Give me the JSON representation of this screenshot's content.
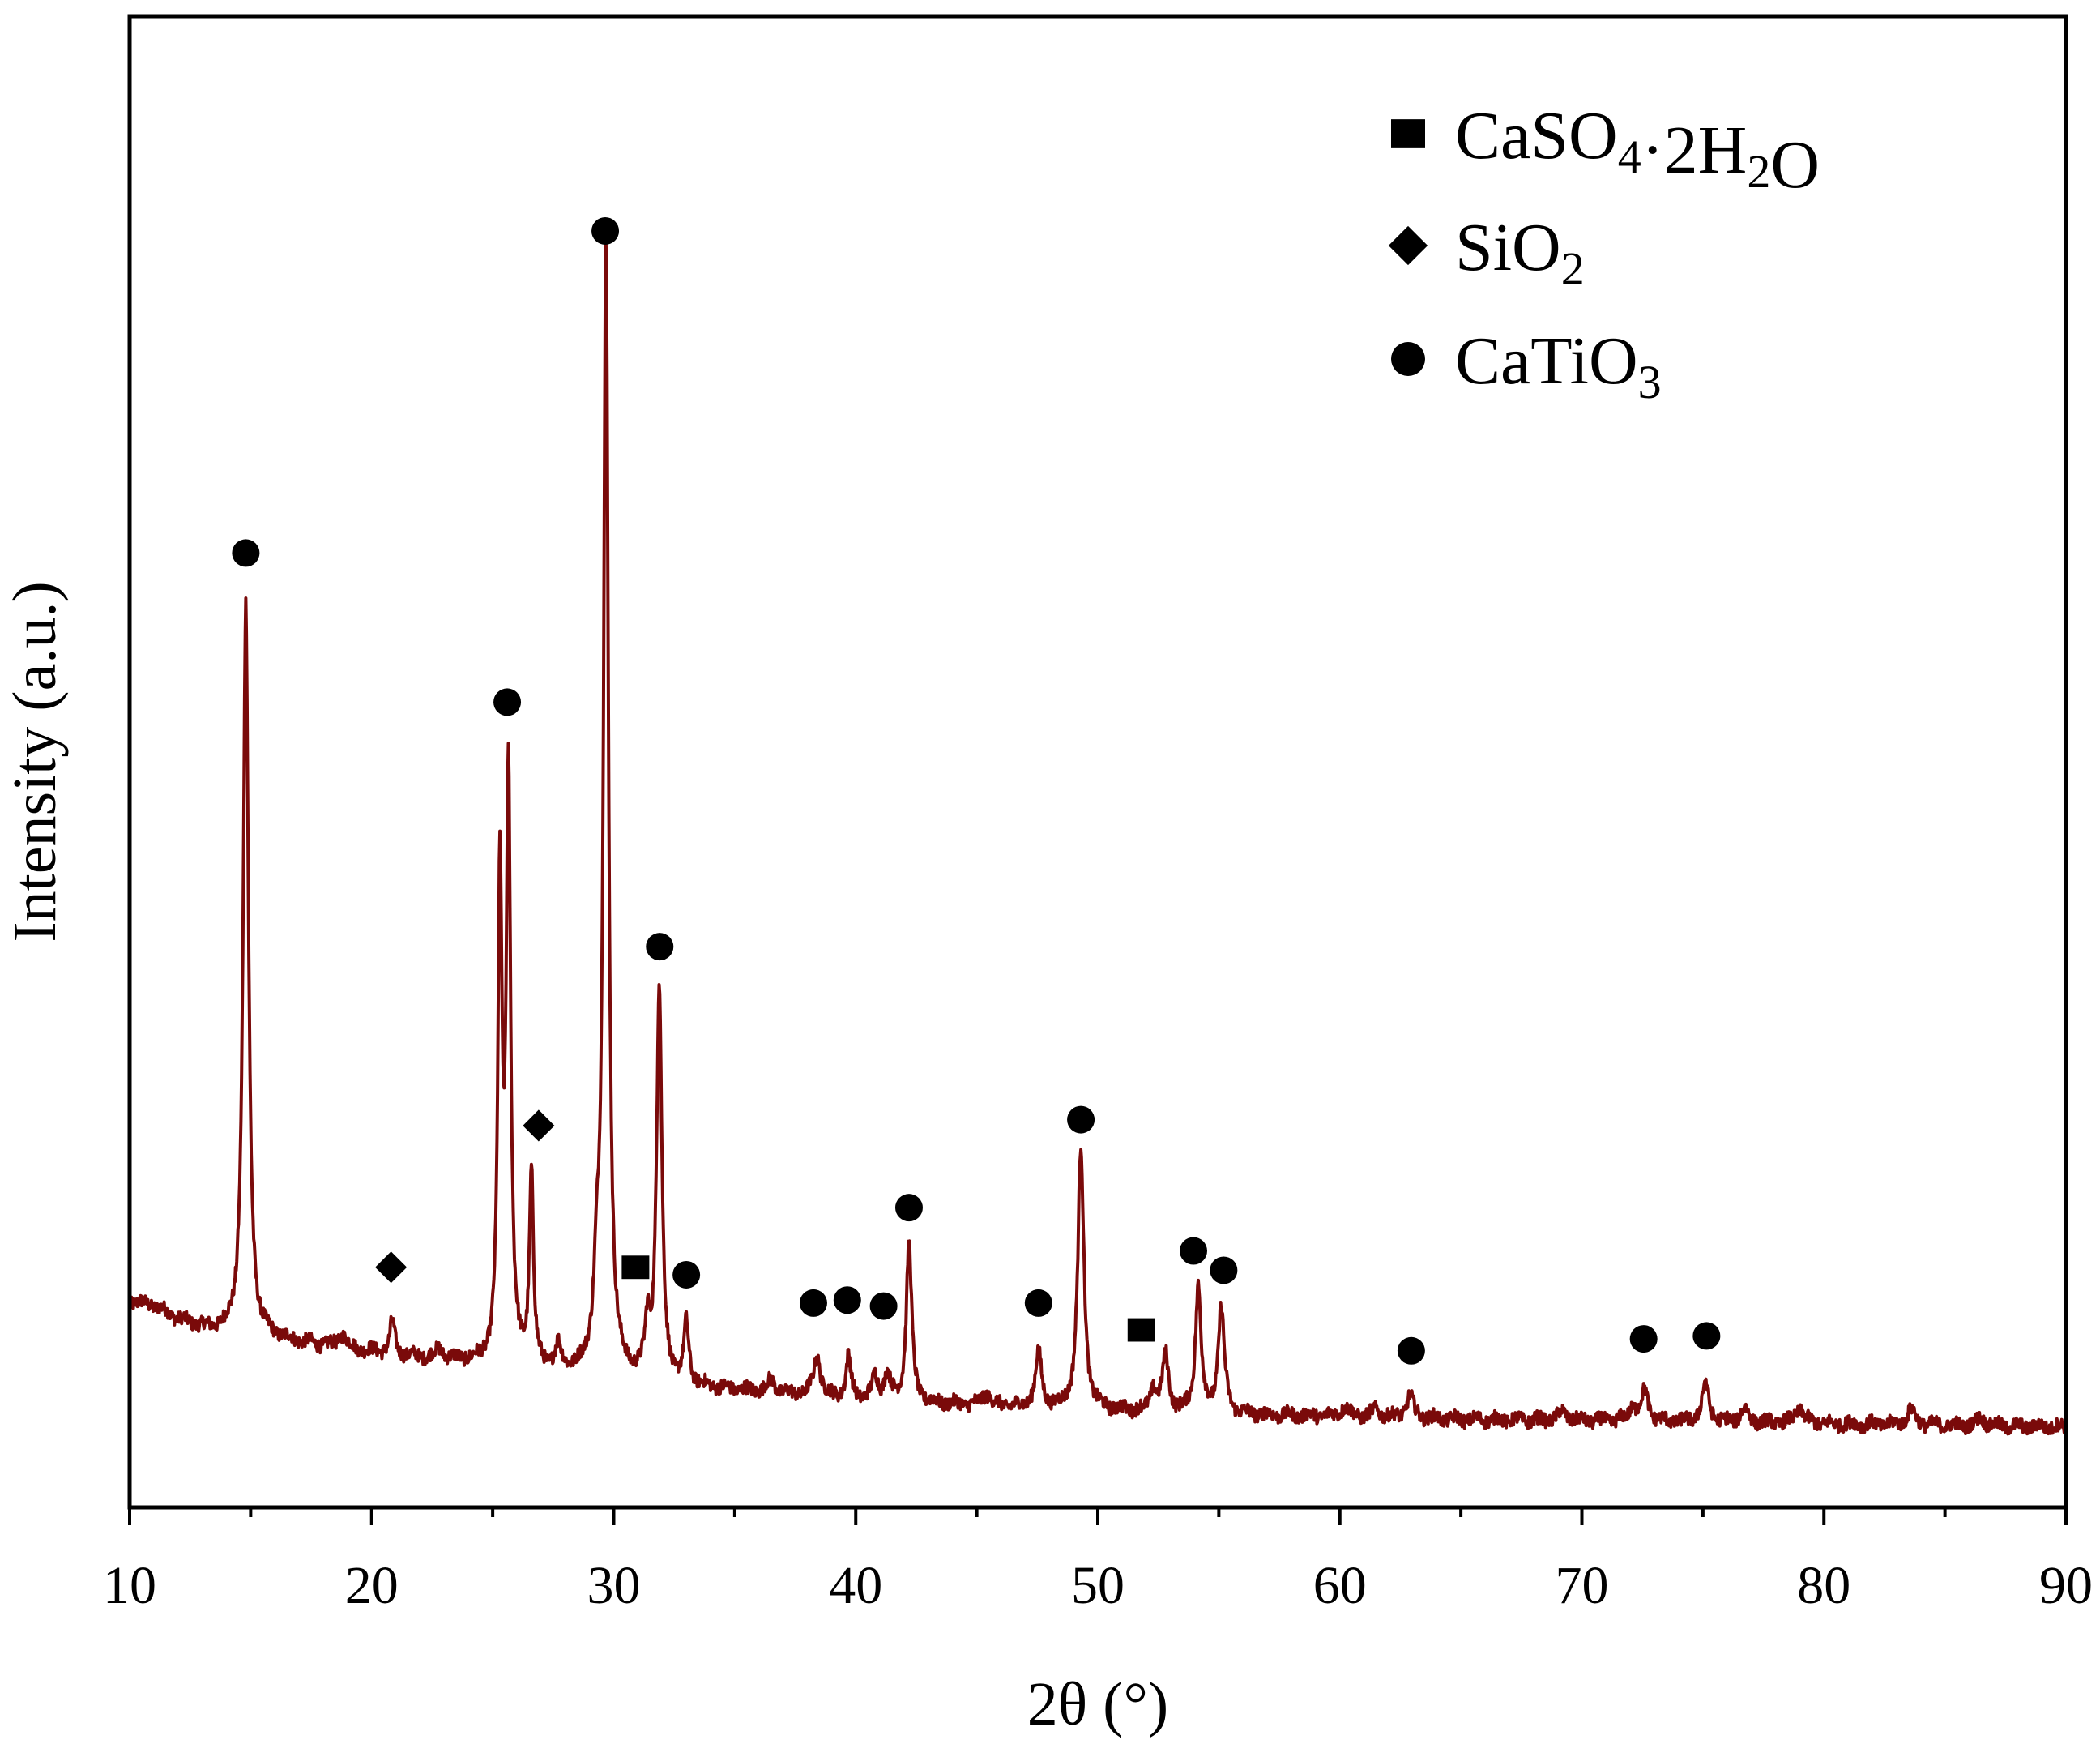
{
  "colors": {
    "trace": "#7a0a0a",
    "frame": "#000000",
    "marker": "#000000",
    "background": "#ffffff"
  },
  "chart_data": {
    "type": "line",
    "title": "",
    "xlabel": "2θ (°)",
    "ylabel": "Intensity (a.u.)",
    "xlim": [
      10,
      90
    ],
    "ylim": [
      0,
      100
    ],
    "x_ticks": [
      "10",
      "20",
      "30",
      "40",
      "50",
      "60",
      "70",
      "80",
      "90"
    ],
    "x_ticks_minor_step": 5,
    "y_ticks": [],
    "grid": false,
    "legend_position": "top-right",
    "legend": [
      {
        "id": "gypsum",
        "marker": "square",
        "label_parts": [
          {
            "t": "CaSO"
          },
          {
            "t": "4",
            "sub": true
          },
          {
            "t": "·2H"
          },
          {
            "t": "2",
            "sub": true
          },
          {
            "t": "O"
          }
        ]
      },
      {
        "id": "quartz",
        "marker": "diamond",
        "label_parts": [
          {
            "t": "SiO"
          },
          {
            "t": "2",
            "sub": true
          }
        ]
      },
      {
        "id": "perovskite",
        "marker": "circle",
        "label_parts": [
          {
            "t": "CaTiO"
          },
          {
            "t": "3",
            "sub": true
          }
        ]
      }
    ],
    "baseline": [
      [
        10,
        13.8
      ],
      [
        11,
        13.5
      ],
      [
        12,
        12.6
      ],
      [
        13,
        12.0
      ],
      [
        14,
        11.7
      ],
      [
        15,
        11.5
      ],
      [
        16,
        11.3
      ],
      [
        18,
        10.8
      ],
      [
        20,
        10.4
      ],
      [
        22,
        10.0
      ],
      [
        24,
        9.7
      ],
      [
        25,
        9.5
      ],
      [
        27,
        9.1
      ],
      [
        30,
        8.7
      ],
      [
        33,
        8.1
      ],
      [
        36,
        7.7
      ],
      [
        40,
        7.2
      ],
      [
        45,
        6.8
      ],
      [
        50,
        6.5
      ],
      [
        55,
        6.2
      ],
      [
        60,
        6.1
      ],
      [
        65,
        5.9
      ],
      [
        70,
        5.8
      ],
      [
        75,
        5.7
      ],
      [
        80,
        5.6
      ],
      [
        85,
        5.5
      ],
      [
        90,
        5.4
      ]
    ],
    "noise_amplitude": 0.45,
    "peaks": [
      {
        "x": 14.8,
        "height": 49.0,
        "width": 0.13
      },
      {
        "x": 18.8,
        "height": 0.9,
        "width": 0.2
      },
      {
        "x": 20.85,
        "height": 2.2,
        "width": 0.12
      },
      {
        "x": 22.8,
        "height": 0.6,
        "width": 0.2
      },
      {
        "x": 25.3,
        "height": 32.0,
        "width": 0.1
      },
      {
        "x": 25.65,
        "height": 39.0,
        "width": 0.11
      },
      {
        "x": 26.6,
        "height": 13.0,
        "width": 0.1
      },
      {
        "x": 27.7,
        "height": 1.5,
        "width": 0.15
      },
      {
        "x": 29.3,
        "height": 5.0,
        "width": 0.15
      },
      {
        "x": 29.68,
        "height": 75.5,
        "width": 0.12
      },
      {
        "x": 31.4,
        "height": 3.3,
        "width": 0.12
      },
      {
        "x": 31.88,
        "height": 26.5,
        "width": 0.13
      },
      {
        "x": 33.0,
        "height": 4.0,
        "width": 0.12
      },
      {
        "x": 36.5,
        "height": 0.8,
        "width": 0.2
      },
      {
        "x": 38.4,
        "height": 2.7,
        "width": 0.17
      },
      {
        "x": 39.7,
        "height": 2.8,
        "width": 0.12
      },
      {
        "x": 40.8,
        "height": 1.5,
        "width": 0.15
      },
      {
        "x": 41.3,
        "height": 1.7,
        "width": 0.15
      },
      {
        "x": 42.2,
        "height": 10.8,
        "width": 0.13
      },
      {
        "x": 45.4,
        "height": 0.8,
        "width": 0.2
      },
      {
        "x": 47.55,
        "height": 3.7,
        "width": 0.15
      },
      {
        "x": 49.3,
        "height": 17.5,
        "width": 0.15
      },
      {
        "x": 52.3,
        "height": 1.5,
        "width": 0.15
      },
      {
        "x": 52.8,
        "height": 3.8,
        "width": 0.15
      },
      {
        "x": 54.15,
        "height": 8.5,
        "width": 0.14
      },
      {
        "x": 55.1,
        "height": 7.2,
        "width": 0.15
      },
      {
        "x": 60.2,
        "height": 0.6,
        "width": 0.2
      },
      {
        "x": 61.5,
        "height": 0.5,
        "width": 0.2
      },
      {
        "x": 62.9,
        "height": 1.5,
        "width": 0.17
      },
      {
        "x": 69.2,
        "height": 0.6,
        "width": 0.2
      },
      {
        "x": 72.1,
        "height": 0.9,
        "width": 0.18
      },
      {
        "x": 72.6,
        "height": 2.0,
        "width": 0.17
      },
      {
        "x": 75.1,
        "height": 2.6,
        "width": 0.17
      },
      {
        "x": 76.7,
        "height": 0.9,
        "width": 0.2
      },
      {
        "x": 79.0,
        "height": 1.0,
        "width": 0.2
      },
      {
        "x": 83.6,
        "height": 1.0,
        "width": 0.2
      },
      {
        "x": 86.5,
        "height": 0.5,
        "width": 0.2
      }
    ],
    "phase_markers": [
      {
        "phase": "perovskite",
        "shape": "circle",
        "x": 14.8,
        "y": 64.0
      },
      {
        "phase": "quartz",
        "shape": "diamond",
        "x": 20.8,
        "y": 16.1
      },
      {
        "phase": "perovskite",
        "shape": "circle",
        "x": 25.6,
        "y": 54.0
      },
      {
        "phase": "quartz",
        "shape": "diamond",
        "x": 26.9,
        "y": 25.6
      },
      {
        "phase": "perovskite",
        "shape": "circle",
        "x": 29.65,
        "y": 85.6
      },
      {
        "phase": "gypsum",
        "shape": "square",
        "x": 30.9,
        "y": 16.1
      },
      {
        "phase": "perovskite",
        "shape": "circle",
        "x": 31.9,
        "y": 37.6
      },
      {
        "phase": "perovskite",
        "shape": "circle",
        "x": 33.0,
        "y": 15.6
      },
      {
        "phase": "perovskite",
        "shape": "circle",
        "x": 38.25,
        "y": 13.7
      },
      {
        "phase": "perovskite",
        "shape": "circle",
        "x": 39.65,
        "y": 13.9
      },
      {
        "phase": "perovskite",
        "shape": "circle",
        "x": 41.15,
        "y": 13.5
      },
      {
        "phase": "perovskite",
        "shape": "circle",
        "x": 42.2,
        "y": 20.1
      },
      {
        "phase": "perovskite",
        "shape": "circle",
        "x": 47.55,
        "y": 13.7
      },
      {
        "phase": "perovskite",
        "shape": "circle",
        "x": 49.3,
        "y": 26.0
      },
      {
        "phase": "gypsum",
        "shape": "square",
        "x": 51.8,
        "y": 11.9
      },
      {
        "phase": "perovskite",
        "shape": "circle",
        "x": 53.95,
        "y": 17.2
      },
      {
        "phase": "perovskite",
        "shape": "circle",
        "x": 55.2,
        "y": 15.9
      },
      {
        "phase": "perovskite",
        "shape": "circle",
        "x": 62.95,
        "y": 10.5
      },
      {
        "phase": "perovskite",
        "shape": "circle",
        "x": 72.55,
        "y": 11.3
      },
      {
        "phase": "perovskite",
        "shape": "circle",
        "x": 75.15,
        "y": 11.5
      }
    ]
  }
}
